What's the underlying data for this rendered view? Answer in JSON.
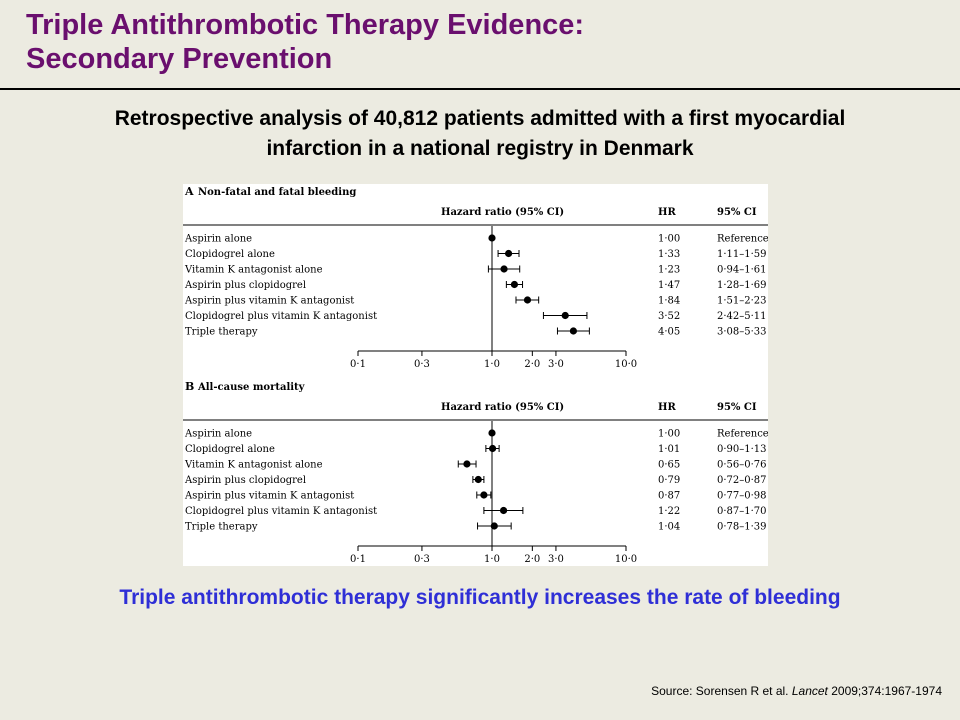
{
  "slide": {
    "title_line1": "Triple Antithrombotic Therapy Evidence:",
    "title_line2": "Secondary Prevention",
    "subtitle_line1": "Retrospective analysis of 40,812 patients admitted with a first myocardial",
    "subtitle_line2": "infarction in a national registry in Denmark",
    "conclusion": "Triple antithrombotic therapy significantly increases the rate of bleeding",
    "source_prefix": "Source: Sorensen R et al. ",
    "source_journal": "Lancet",
    "source_suffix": " 2009;374:1967-1974"
  },
  "colors": {
    "title": "#6a0f6e",
    "conclusion": "#2f2fd6",
    "background": "#ecebe1"
  },
  "chart_data": [
    {
      "type": "forest",
      "panel_letter": "A",
      "title": "Non-fatal and fatal bleeding",
      "col_header": "Hazard ratio (95% CI)",
      "hr_header": "HR",
      "ci_header": "95% CI",
      "x_scale": "log",
      "xlim": [
        0.1,
        10.0
      ],
      "ticks": [
        0.1,
        0.3,
        1.0,
        2.0,
        3.0,
        10.0
      ],
      "tick_labels": [
        "0·1",
        "0·3",
        "1·0",
        "2·0",
        "3·0",
        "10·0"
      ],
      "reference_line": 1.0,
      "rows": [
        {
          "label": "Aspirin alone",
          "hr": 1.0,
          "lo": null,
          "hi": null,
          "hr_text": "1·00",
          "ci_text": "Reference"
        },
        {
          "label": "Clopidogrel alone",
          "hr": 1.33,
          "lo": 1.11,
          "hi": 1.59,
          "hr_text": "1·33",
          "ci_text": "1·11–1·59"
        },
        {
          "label": "Vitamin K antagonist alone",
          "hr": 1.23,
          "lo": 0.94,
          "hi": 1.61,
          "hr_text": "1·23",
          "ci_text": "0·94–1·61"
        },
        {
          "label": "Aspirin plus clopidogrel",
          "hr": 1.47,
          "lo": 1.28,
          "hi": 1.69,
          "hr_text": "1·47",
          "ci_text": "1·28–1·69"
        },
        {
          "label": "Aspirin plus vitamin K antagonist",
          "hr": 1.84,
          "lo": 1.51,
          "hi": 2.23,
          "hr_text": "1·84",
          "ci_text": "1·51–2·23"
        },
        {
          "label": "Clopidogrel plus vitamin K antagonist",
          "hr": 3.52,
          "lo": 2.42,
          "hi": 5.11,
          "hr_text": "3·52",
          "ci_text": "2·42–5·11"
        },
        {
          "label": "Triple therapy",
          "hr": 4.05,
          "lo": 3.08,
          "hi": 5.33,
          "hr_text": "4·05",
          "ci_text": "3·08–5·33"
        }
      ]
    },
    {
      "type": "forest",
      "panel_letter": "B",
      "title": "All-cause mortality",
      "col_header": "Hazard ratio (95% CI)",
      "hr_header": "HR",
      "ci_header": "95% CI",
      "x_scale": "log",
      "xlim": [
        0.1,
        10.0
      ],
      "ticks": [
        0.1,
        0.3,
        1.0,
        2.0,
        3.0,
        10.0
      ],
      "tick_labels": [
        "0·1",
        "0·3",
        "1·0",
        "2·0",
        "3·0",
        "10·0"
      ],
      "reference_line": 1.0,
      "rows": [
        {
          "label": "Aspirin alone",
          "hr": 1.0,
          "lo": null,
          "hi": null,
          "hr_text": "1·00",
          "ci_text": "Reference"
        },
        {
          "label": "Clopidogrel alone",
          "hr": 1.01,
          "lo": 0.9,
          "hi": 1.13,
          "hr_text": "1·01",
          "ci_text": "0·90–1·13"
        },
        {
          "label": "Vitamin K antagonist alone",
          "hr": 0.65,
          "lo": 0.56,
          "hi": 0.76,
          "hr_text": "0·65",
          "ci_text": "0·56–0·76"
        },
        {
          "label": "Aspirin plus clopidogrel",
          "hr": 0.79,
          "lo": 0.72,
          "hi": 0.87,
          "hr_text": "0·79",
          "ci_text": "0·72–0·87"
        },
        {
          "label": "Aspirin plus vitamin K antagonist",
          "hr": 0.87,
          "lo": 0.77,
          "hi": 0.98,
          "hr_text": "0·87",
          "ci_text": "0·77–0·98"
        },
        {
          "label": "Clopidogrel plus vitamin K antagonist",
          "hr": 1.22,
          "lo": 0.87,
          "hi": 1.7,
          "hr_text": "1·22",
          "ci_text": "0·87–1·70"
        },
        {
          "label": "Triple therapy",
          "hr": 1.04,
          "lo": 0.78,
          "hi": 1.39,
          "hr_text": "1·04",
          "ci_text": "0·78–1·39"
        }
      ]
    }
  ]
}
